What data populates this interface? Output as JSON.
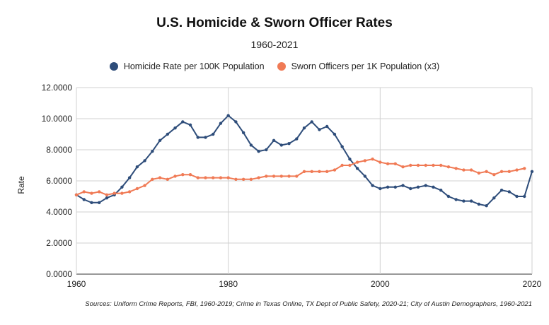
{
  "chart_data": {
    "type": "line",
    "title": "U.S. Homicide & Sworn Officer Rates",
    "subtitle": "1960-2021",
    "xlabel": "",
    "ylabel": "Rate",
    "xlim": [
      1960,
      2020
    ],
    "ylim": [
      0,
      12
    ],
    "x_ticks": [
      "1960",
      "1980",
      "2000",
      "2020"
    ],
    "y_ticks": [
      "0.0000",
      "2.0000",
      "4.0000",
      "6.0000",
      "8.0000",
      "10.0000",
      "12.0000"
    ],
    "grid": "vertical and horizontal",
    "legend_position": "top",
    "source": "Sources: Uniform Crime Reports, FBI, 1960-2019; Crime in Texas Online, TX Dept of Public Safety, 2020-21; City of Austin Demographers, 1960-2021",
    "series": [
      {
        "name": "Homicide Rate per 100K Population",
        "color": "#2e4d7a",
        "x": [
          1960,
          1961,
          1962,
          1963,
          1964,
          1965,
          1966,
          1967,
          1968,
          1969,
          1970,
          1971,
          1972,
          1973,
          1974,
          1975,
          1976,
          1977,
          1978,
          1979,
          1980,
          1981,
          1982,
          1983,
          1984,
          1985,
          1986,
          1987,
          1988,
          1989,
          1990,
          1991,
          1992,
          1993,
          1994,
          1995,
          1996,
          1997,
          1998,
          1999,
          2000,
          2001,
          2002,
          2003,
          2004,
          2005,
          2006,
          2007,
          2008,
          2009,
          2010,
          2011,
          2012,
          2013,
          2014,
          2015,
          2016,
          2017,
          2018,
          2019,
          2020
        ],
        "values": [
          5.1,
          4.8,
          4.6,
          4.6,
          4.9,
          5.1,
          5.6,
          6.2,
          6.9,
          7.3,
          7.9,
          8.6,
          9.0,
          9.4,
          9.8,
          9.6,
          8.8,
          8.8,
          9.0,
          9.7,
          10.2,
          9.8,
          9.1,
          8.3,
          7.9,
          8.0,
          8.6,
          8.3,
          8.4,
          8.7,
          9.4,
          9.8,
          9.3,
          9.5,
          9.0,
          8.2,
          7.4,
          6.8,
          6.3,
          5.7,
          5.5,
          5.6,
          5.6,
          5.7,
          5.5,
          5.6,
          5.7,
          5.6,
          5.4,
          5.0,
          4.8,
          4.7,
          4.7,
          4.5,
          4.4,
          4.9,
          5.4,
          5.3,
          5.0,
          5.0,
          6.6
        ]
      },
      {
        "name": "Sworn Officers per 1K Population (x3)",
        "color": "#f07a55",
        "x": [
          1960,
          1961,
          1962,
          1963,
          1964,
          1965,
          1966,
          1967,
          1968,
          1969,
          1970,
          1971,
          1972,
          1973,
          1974,
          1975,
          1976,
          1977,
          1978,
          1979,
          1980,
          1981,
          1982,
          1983,
          1984,
          1985,
          1986,
          1987,
          1988,
          1989,
          1990,
          1991,
          1992,
          1993,
          1994,
          1995,
          1996,
          1997,
          1998,
          1999,
          2000,
          2001,
          2002,
          2003,
          2004,
          2005,
          2006,
          2007,
          2008,
          2009,
          2010,
          2011,
          2012,
          2013,
          2014,
          2015,
          2016,
          2017,
          2018,
          2019
        ],
        "values": [
          5.1,
          5.3,
          5.2,
          5.3,
          5.1,
          5.2,
          5.2,
          5.3,
          5.5,
          5.7,
          6.1,
          6.2,
          6.1,
          6.3,
          6.4,
          6.4,
          6.2,
          6.2,
          6.2,
          6.2,
          6.2,
          6.1,
          6.1,
          6.1,
          6.2,
          6.3,
          6.3,
          6.3,
          6.3,
          6.3,
          6.6,
          6.6,
          6.6,
          6.6,
          6.7,
          7.0,
          7.0,
          7.2,
          7.3,
          7.4,
          7.2,
          7.1,
          7.1,
          6.9,
          7.0,
          7.0,
          7.0,
          7.0,
          7.0,
          6.9,
          6.8,
          6.7,
          6.7,
          6.5,
          6.6,
          6.4,
          6.6,
          6.6,
          6.7,
          6.8
        ]
      }
    ]
  }
}
